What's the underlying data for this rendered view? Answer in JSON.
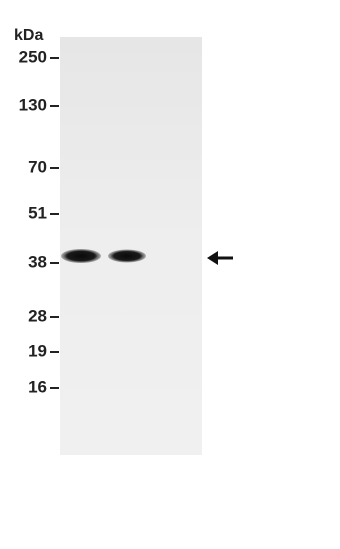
{
  "unit_label": "kDa",
  "markers": [
    "250",
    "130",
    "70",
    "51",
    "38",
    "28",
    "19",
    "16"
  ]
}
